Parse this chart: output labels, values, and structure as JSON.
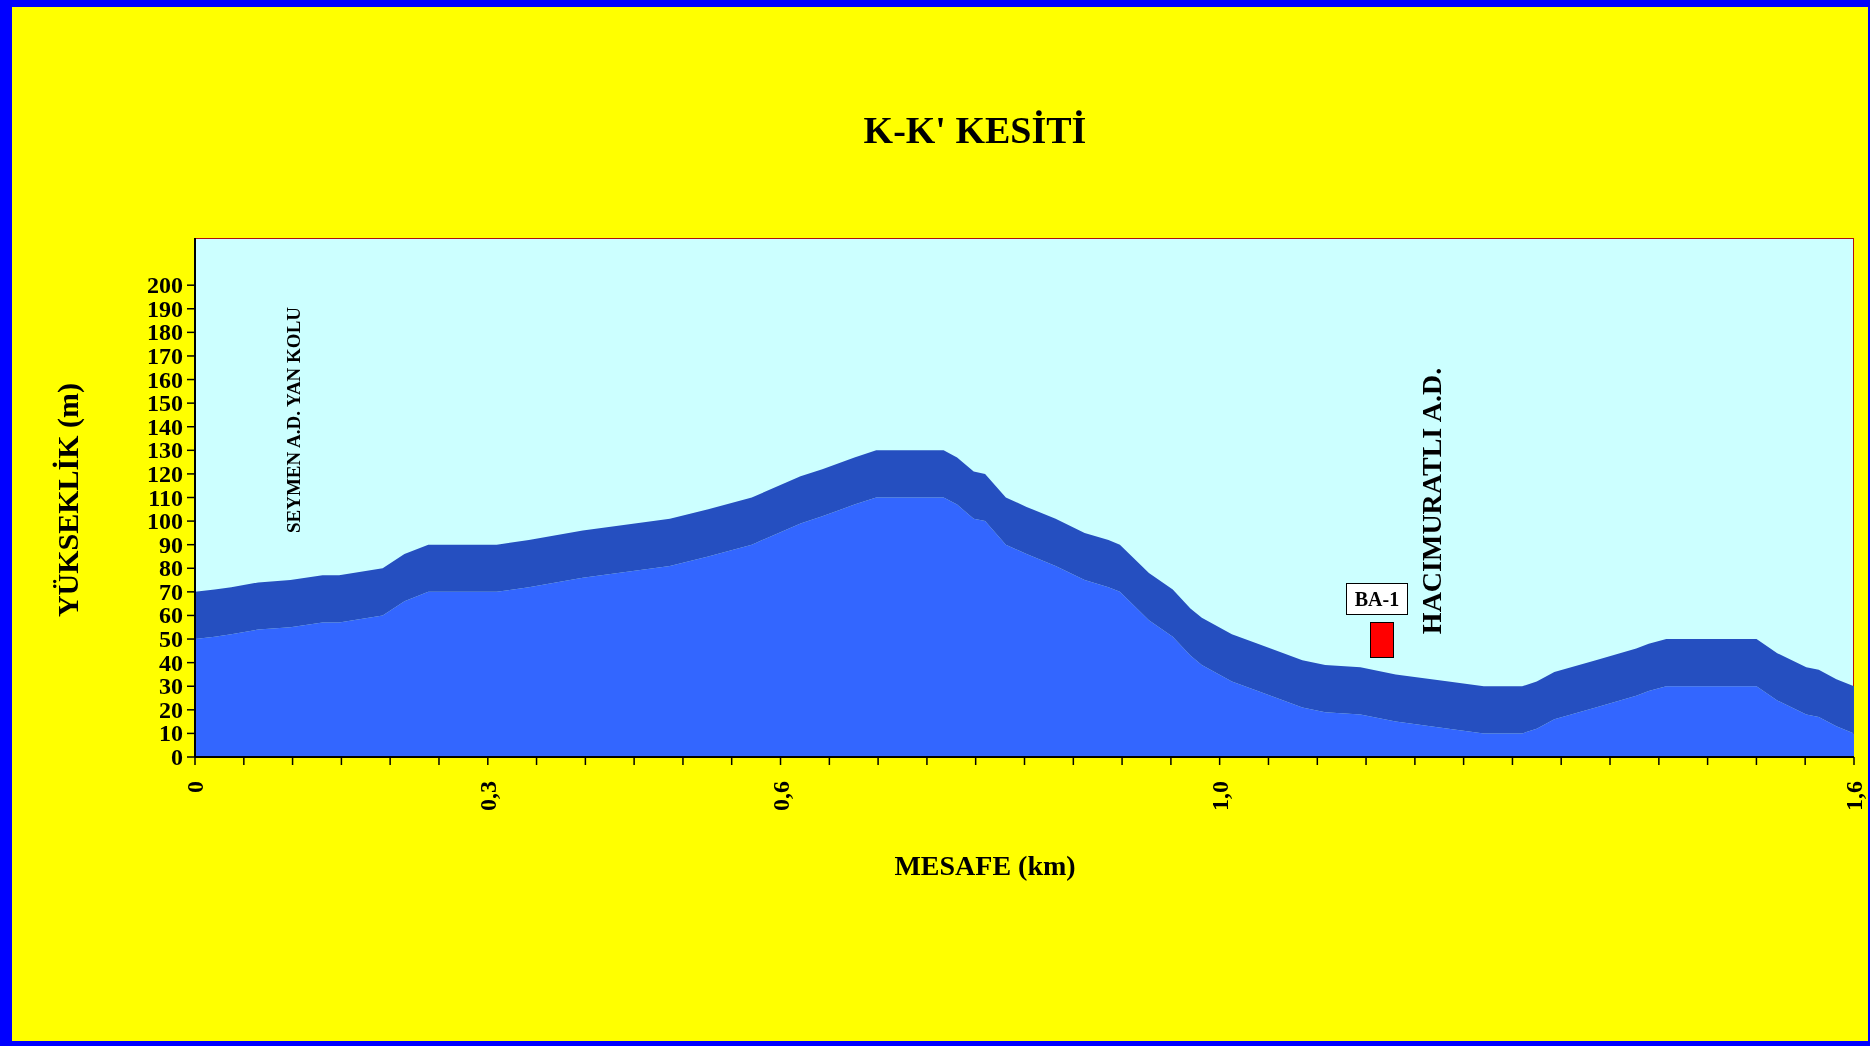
{
  "chart_data": {
    "type": "area",
    "stacked": true,
    "title": "K-K' KESİTİ",
    "xlabel": "MESAFE (km)",
    "ylabel": "YÜKSEKLİK (m)",
    "annotations": [
      "SEYMEN A.D. YAN KOLU",
      "HACIMURATLI A.D.",
      "BA-1"
    ],
    "x": [
      0,
      0.019,
      0.035,
      0.061,
      0.092,
      0.123,
      0.139,
      0.181,
      0.202,
      0.225,
      0.291,
      0.322,
      0.374,
      0.442,
      0.458,
      0.495,
      0.537,
      0.584,
      0.605,
      0.636,
      0.657,
      0.722,
      0.735,
      0.751,
      0.762,
      0.782,
      0.802,
      0.83,
      0.858,
      0.881,
      0.892,
      0.92,
      0.943,
      0.96,
      0.971,
      1.0,
      1.025,
      1.068,
      1.09,
      1.124,
      1.158,
      1.209,
      1.243,
      1.28,
      1.294,
      1.311,
      1.351,
      1.39,
      1.402,
      1.419,
      1.506,
      1.526,
      1.554,
      1.566,
      1.583,
      1.6
    ],
    "series": [
      {
        "color": "#3366ff",
        "values": [
          50,
          51,
          52,
          54,
          55,
          57,
          57,
          60,
          66,
          70,
          70,
          72,
          76,
          80,
          81,
          85,
          90,
          99,
          102,
          107,
          110,
          110,
          107,
          101,
          100,
          90,
          86,
          81,
          75,
          72,
          70,
          58,
          51,
          43,
          39,
          32,
          28,
          21,
          19,
          18,
          15,
          12,
          10,
          10,
          12,
          16,
          21,
          26,
          28,
          30,
          30,
          24,
          18,
          17,
          13,
          10
        ]
      },
      {
        "color": "#254fc0",
        "values": [
          20,
          20,
          20,
          20,
          20,
          20,
          20,
          20,
          20,
          20,
          20,
          20,
          20,
          20,
          20,
          20,
          20,
          20,
          20,
          20,
          20,
          20,
          20,
          20,
          20,
          20,
          20,
          20,
          20,
          20,
          20,
          20,
          20,
          20,
          20,
          20,
          20,
          20,
          20,
          20,
          20,
          20,
          20,
          20,
          20,
          20,
          20,
          20,
          20,
          20,
          20,
          20,
          20,
          20,
          20,
          20
        ]
      }
    ],
    "xlim": [
      0,
      1.6
    ],
    "xticks": [
      {
        "value": 0,
        "label": "0"
      },
      {
        "value": 0.0471,
        "label": null
      },
      {
        "value": 0.0941,
        "label": null
      },
      {
        "value": 0.1412,
        "label": null
      },
      {
        "value": 0.1882,
        "label": null
      },
      {
        "value": 0.2353,
        "label": null
      },
      {
        "value": 0.2824,
        "label": "0,3"
      },
      {
        "value": 0.3294,
        "label": null
      },
      {
        "value": 0.3765,
        "label": null
      },
      {
        "value": 0.4235,
        "label": null
      },
      {
        "value": 0.4706,
        "label": null
      },
      {
        "value": 0.5176,
        "label": null
      },
      {
        "value": 0.5647,
        "label": "0,6"
      },
      {
        "value": 0.6118,
        "label": null
      },
      {
        "value": 0.6588,
        "label": null
      },
      {
        "value": 0.7059,
        "label": null
      },
      {
        "value": 0.7529,
        "label": null
      },
      {
        "value": 0.8,
        "label": null
      },
      {
        "value": 0.8471,
        "label": null
      },
      {
        "value": 0.8941,
        "label": null
      },
      {
        "value": 0.9412,
        "label": null
      },
      {
        "value": 0.9882,
        "label": "1,0"
      },
      {
        "value": 1.0353,
        "label": null
      },
      {
        "value": 1.0824,
        "label": null
      },
      {
        "value": 1.1294,
        "label": null
      },
      {
        "value": 1.1765,
        "label": null
      },
      {
        "value": 1.2235,
        "label": null
      },
      {
        "value": 1.2706,
        "label": null
      },
      {
        "value": 1.3176,
        "label": null
      },
      {
        "value": 1.3647,
        "label": null
      },
      {
        "value": 1.4118,
        "label": null
      },
      {
        "value": 1.4588,
        "label": null
      },
      {
        "value": 1.5059,
        "label": null
      },
      {
        "value": 1.5529,
        "label": null
      },
      {
        "value": 1.6,
        "label": "1,6"
      }
    ],
    "ylim": [
      0,
      220
    ],
    "yticks": [
      0,
      10,
      20,
      30,
      40,
      50,
      60,
      70,
      80,
      90,
      100,
      110,
      120,
      130,
      140,
      150,
      160,
      170,
      180,
      190,
      200
    ],
    "grid": false,
    "legend": false
  }
}
